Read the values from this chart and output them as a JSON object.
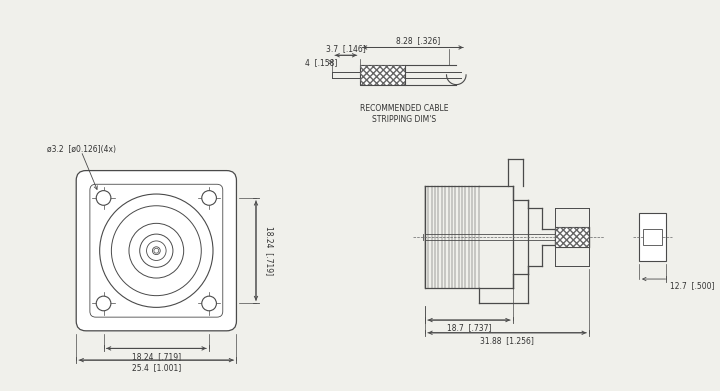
{
  "bg_color": "#f0f0eb",
  "line_color": "#4a4a4a",
  "text_color": "#333333",
  "hatch_color": "#666666",
  "cable_label": "RECOMMENDED CABLE\nSTRIPPING DIM'S",
  "dim_37": "3.7  [.146]",
  "dim_828": "8.28  [.326]",
  "dim_4": "4  [.158]",
  "hole_label": "ø3.2  [ø0.126](4x)",
  "dim_1824_h": "18.24  [.719]",
  "dim_254": "25.4  [1.001]",
  "dim_1824_v": "18.24  [.719]",
  "dim_187": "18.7  [.737]",
  "dim_3188": "31.88  [1.256]",
  "dim_127": "12.7  [.500]"
}
